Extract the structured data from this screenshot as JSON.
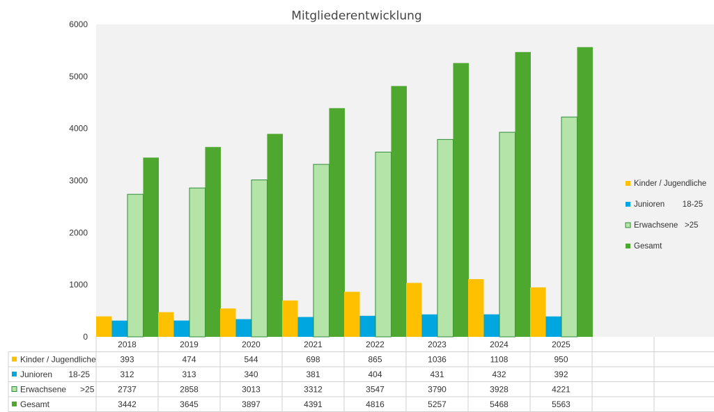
{
  "chart_data": {
    "type": "bar",
    "title": "Mitgliederentwicklung",
    "xlabel": "",
    "ylabel": "",
    "ylim": [
      0,
      6000
    ],
    "yticks": [
      0,
      1000,
      2000,
      3000,
      4000,
      5000,
      6000
    ],
    "grid": false,
    "legend_position": "right",
    "data_table": true,
    "categories": [
      "2018",
      "2019",
      "2020",
      "2021",
      "2022",
      "2023",
      "2024",
      "2025"
    ],
    "series": [
      {
        "name": "Kinder / Jugendliche",
        "legend_label": "Kinder / Jugendliche",
        "table_label": "Kinder / Jugendliche",
        "color": "#FFC000",
        "values": [
          393,
          474,
          544,
          698,
          865,
          1036,
          1108,
          950
        ]
      },
      {
        "name": "Junioren 18-25",
        "legend_label": "Junioren        18-25",
        "table_label": "Junioren       18-25",
        "color": "#00A6E0",
        "values": [
          312,
          313,
          340,
          381,
          404,
          431,
          432,
          392
        ]
      },
      {
        "name": "Erwachsene >25",
        "legend_label": "Erwachsene   >25",
        "table_label": "Erwachsene      >25",
        "color": "#B5E4A8",
        "border": "#2E8B3A",
        "values": [
          2737,
          2858,
          3013,
          3312,
          3547,
          3790,
          3928,
          4221
        ]
      },
      {
        "name": "Gesamt",
        "legend_label": "Gesamt",
        "table_label": "Gesamt",
        "color": "#4EA72E",
        "values": [
          3442,
          3645,
          3897,
          4391,
          4816,
          5257,
          5468,
          5563
        ]
      }
    ]
  }
}
